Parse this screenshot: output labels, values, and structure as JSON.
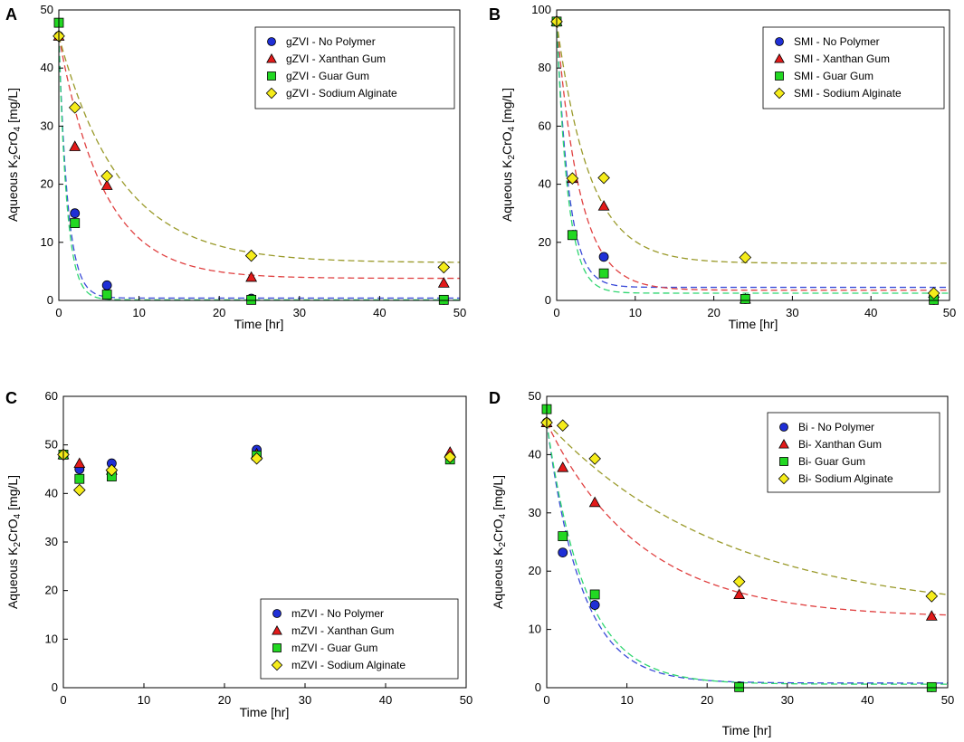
{
  "colors": {
    "no_polymer": "#1f2fd6",
    "xanthan": "#e21a1a",
    "guar": "#22d822",
    "alginate": "#f5ec1a",
    "fit_no_polymer": "#3a4ad8",
    "fit_xanthan": "#e04040",
    "fit_guar": "#2fd670",
    "fit_alginate": "#9a9a2a"
  },
  "chart_data": [
    {
      "id": "A",
      "type": "scatter",
      "panel_label": "A",
      "xlabel": "Time [hr]",
      "ylabel": "Aqueous K2CrO4 [mg/L]",
      "ylabel_parts": [
        "Aqueous K",
        "2",
        "CrO",
        "4",
        " [mg/L]"
      ],
      "xlim": [
        0,
        50
      ],
      "ylim": [
        0,
        50
      ],
      "xticks": [
        0,
        10,
        20,
        30,
        40,
        50
      ],
      "yticks": [
        0,
        10,
        20,
        30,
        40,
        50
      ],
      "legend_position": "top-right",
      "series": [
        {
          "name": "gZVI - No Polymer",
          "marker": "circle",
          "color_key": "no_polymer",
          "x": [
            0,
            2,
            6,
            24,
            48
          ],
          "y": [
            45.5,
            15.0,
            2.6,
            0.3,
            0.1
          ],
          "fit": {
            "c0": 45.5,
            "c_inf": 0.4,
            "k": 0.9
          }
        },
        {
          "name": "gZVI - Xanthan Gum",
          "marker": "triangle",
          "color_key": "xanthan",
          "x": [
            0,
            2,
            6,
            24,
            48
          ],
          "y": [
            45.5,
            26.5,
            19.8,
            4.0,
            3.0
          ],
          "fit": {
            "c0": 45.5,
            "c_inf": 3.8,
            "k": 0.18
          }
        },
        {
          "name": "gZVI - Guar Gum",
          "marker": "square",
          "color_key": "guar",
          "x": [
            0,
            2,
            6,
            24,
            48
          ],
          "y": [
            47.8,
            13.3,
            1.0,
            0.1,
            0.1
          ],
          "fit": {
            "c0": 45.5,
            "c_inf": 0.1,
            "k": 1.0
          }
        },
        {
          "name": "gZVI - Sodium Alginate",
          "marker": "diamond",
          "color_key": "alginate",
          "x": [
            0,
            2,
            6,
            24,
            48
          ],
          "y": [
            45.5,
            33.2,
            21.4,
            7.7,
            5.7
          ],
          "fit": {
            "c0": 45.5,
            "c_inf": 6.5,
            "k": 0.13
          }
        }
      ]
    },
    {
      "id": "B",
      "type": "scatter",
      "panel_label": "B",
      "xlabel": "Time [hr]",
      "ylabel": "Aqueous K2CrO4 [mg/L]",
      "ylabel_parts": [
        "Aqueous K",
        "2",
        "CrO",
        "4",
        " [mg/L]"
      ],
      "xlim": [
        0,
        50
      ],
      "ylim": [
        0,
        100
      ],
      "xticks": [
        0,
        10,
        20,
        30,
        40,
        50
      ],
      "yticks": [
        0,
        20,
        40,
        60,
        80,
        100
      ],
      "legend_position": "top-right",
      "series": [
        {
          "name": "SMI - No Polymer",
          "marker": "circle",
          "color_key": "no_polymer",
          "x": [
            0,
            2,
            6,
            24,
            48
          ],
          "y": [
            96.0,
            22.5,
            15.0,
            0.5,
            0.2
          ],
          "fit": {
            "c0": 96.0,
            "c_inf": 4.5,
            "k": 0.65
          }
        },
        {
          "name": "SMI -  Xanthan Gum",
          "marker": "triangle",
          "color_key": "xanthan",
          "x": [
            0,
            2,
            6,
            24,
            48
          ],
          "y": [
            96.0,
            42.0,
            32.5,
            0.5,
            2.5
          ],
          "fit": {
            "c0": 96.0,
            "c_inf": 3.5,
            "k": 0.34
          }
        },
        {
          "name": "SMI - Guar Gum",
          "marker": "square",
          "color_key": "guar",
          "x": [
            0,
            2,
            6,
            24,
            48
          ],
          "y": [
            96.0,
            22.5,
            9.3,
            0.5,
            0.2
          ],
          "fit": {
            "c0": 96.0,
            "c_inf": 2.5,
            "k": 0.7
          }
        },
        {
          "name": "SMI - Sodium Alginate",
          "marker": "diamond",
          "color_key": "alginate",
          "x": [
            0,
            2,
            6,
            24,
            48
          ],
          "y": [
            96.0,
            42.0,
            42.2,
            14.8,
            2.5
          ],
          "fit": {
            "c0": 96.0,
            "c_inf": 12.8,
            "k": 0.24
          }
        }
      ]
    },
    {
      "id": "C",
      "type": "scatter",
      "panel_label": "C",
      "xlabel": "Time [hr]",
      "ylabel": "Aqueous K2CrO4 [mg/L]",
      "ylabel_parts": [
        "Aqueous K",
        "2",
        "CrO",
        "4",
        " [mg/L]"
      ],
      "xlim": [
        0,
        50
      ],
      "ylim": [
        0,
        60
      ],
      "xticks": [
        0,
        10,
        20,
        30,
        40,
        50
      ],
      "yticks": [
        0,
        10,
        20,
        30,
        40,
        50,
        60
      ],
      "legend_position": "bottom-right",
      "series": [
        {
          "name": "mZVI - No Polymer",
          "marker": "circle",
          "color_key": "no_polymer",
          "x": [
            0,
            2,
            6,
            24,
            48
          ],
          "y": [
            48.0,
            45.0,
            46.2,
            49.0,
            47.5
          ],
          "fit": null
        },
        {
          "name": "mZVI - Xanthan Gum",
          "marker": "triangle",
          "color_key": "xanthan",
          "x": [
            0,
            2,
            6,
            24,
            48
          ],
          "y": [
            48.0,
            46.2,
            44.8,
            48.2,
            48.5
          ],
          "fit": null
        },
        {
          "name": "mZVI - Guar Gum",
          "marker": "square",
          "color_key": "guar",
          "x": [
            0,
            2,
            6,
            24,
            48
          ],
          "y": [
            48.0,
            43.0,
            43.5,
            47.8,
            47.0
          ],
          "fit": null
        },
        {
          "name": "mZVI - Sodium Alginate",
          "marker": "diamond",
          "color_key": "alginate",
          "x": [
            0,
            2,
            6,
            24,
            48
          ],
          "y": [
            48.0,
            40.7,
            44.8,
            47.2,
            47.5
          ],
          "fit": null
        }
      ]
    },
    {
      "id": "D",
      "type": "scatter",
      "panel_label": "D",
      "xlabel": "Time [hr]",
      "ylabel": "Aqueous K2CrO4 [mg/L]",
      "ylabel_parts": [
        "Aqueous K",
        "2",
        "CrO",
        "4",
        " [mg/L]"
      ],
      "xlim": [
        0,
        50
      ],
      "ylim": [
        0,
        50
      ],
      "xticks": [
        0,
        10,
        20,
        30,
        40,
        50
      ],
      "yticks": [
        0,
        10,
        20,
        30,
        40,
        50
      ],
      "legend_position": "top-right",
      "series": [
        {
          "name": "Bi - No Polymer",
          "marker": "circle",
          "color_key": "no_polymer",
          "x": [
            0,
            2,
            6,
            24,
            48
          ],
          "y": [
            45.5,
            23.2,
            14.2,
            0.2,
            0.1
          ],
          "fit": {
            "c0": 45.5,
            "c_inf": 0.8,
            "k": 0.23
          }
        },
        {
          "name": "Bi- Xanthan Gum",
          "marker": "triangle",
          "color_key": "xanthan",
          "x": [
            0,
            2,
            6,
            24,
            48
          ],
          "y": [
            45.5,
            37.8,
            31.8,
            16.0,
            12.3
          ],
          "fit": {
            "c0": 45.5,
            "c_inf": 12.0,
            "k": 0.085
          }
        },
        {
          "name": "Bi- Guar Gum",
          "marker": "square",
          "color_key": "guar",
          "x": [
            0,
            2,
            6,
            24,
            48
          ],
          "y": [
            47.8,
            26.0,
            16.0,
            0.1,
            0.1
          ],
          "fit": {
            "c0": 45.5,
            "c_inf": 0.6,
            "k": 0.21
          }
        },
        {
          "name": "Bi- Sodium Alginate",
          "marker": "diamond",
          "color_key": "alginate",
          "x": [
            0,
            2,
            6,
            24,
            48
          ],
          "y": [
            45.5,
            45.0,
            39.3,
            18.2,
            15.7
          ],
          "fit": {
            "c0": 45.5,
            "c_inf": 12.5,
            "k": 0.045
          }
        }
      ]
    }
  ]
}
